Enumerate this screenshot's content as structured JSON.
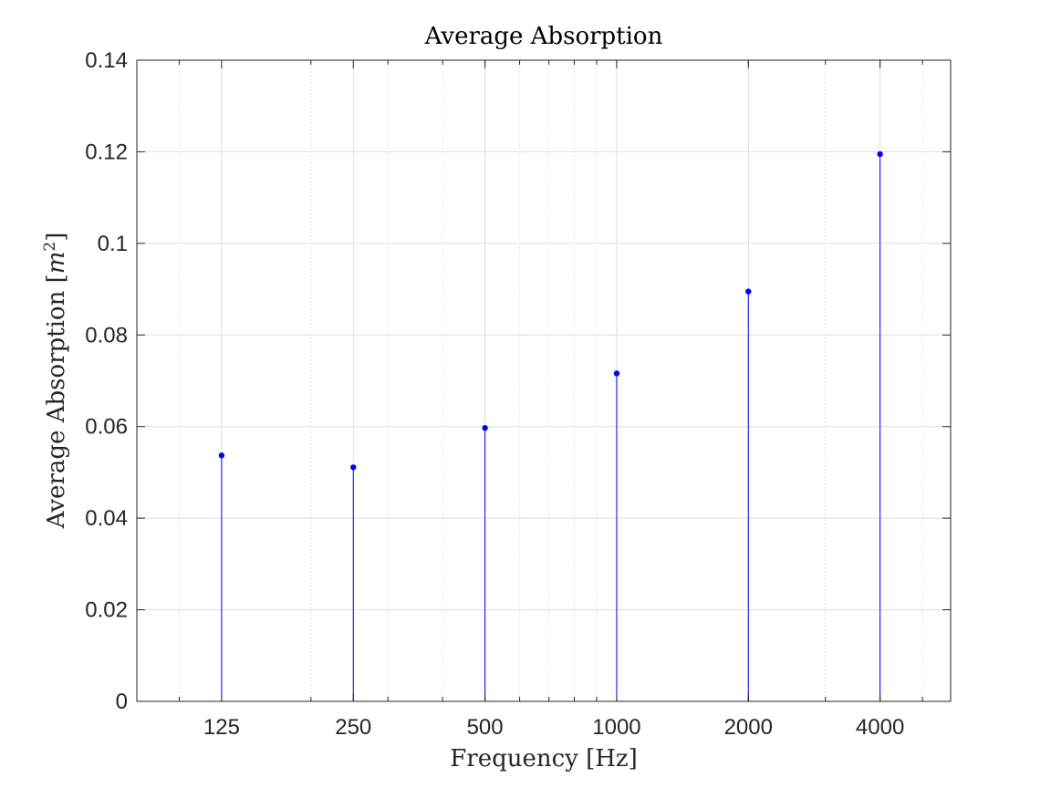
{
  "chart_data": {
    "type": "stem",
    "title": "Average Absorption",
    "xlabel": "Frequency [Hz]",
    "ylabel_text": "Average Absorption [",
    "ylabel_var": "m",
    "ylabel_sup": "2",
    "ylabel_close": "]",
    "x_scale": "log",
    "x": [
      125,
      250,
      500,
      1000,
      2000,
      4000
    ],
    "x_tick_labels": [
      "125",
      "250",
      "500",
      "1000",
      "2000",
      "4000"
    ],
    "values": [
      0.0537,
      0.0511,
      0.0597,
      0.0716,
      0.0895,
      0.1195
    ],
    "xlim": [
      80,
      5800
    ],
    "ylim": [
      0,
      0.14
    ],
    "y_ticks": [
      0,
      0.02,
      0.04,
      0.06,
      0.08,
      0.1,
      0.12,
      0.14
    ],
    "y_tick_labels": [
      "0",
      "0.02",
      "0.04",
      "0.06",
      "0.08",
      "0.1",
      "0.12",
      "0.14"
    ],
    "grid": true,
    "minor_grid": true,
    "legend": "none"
  },
  "colors": {
    "stem": "#0000ff",
    "grid": "#dedede",
    "axis": "#262626",
    "background": "#ffffff"
  }
}
